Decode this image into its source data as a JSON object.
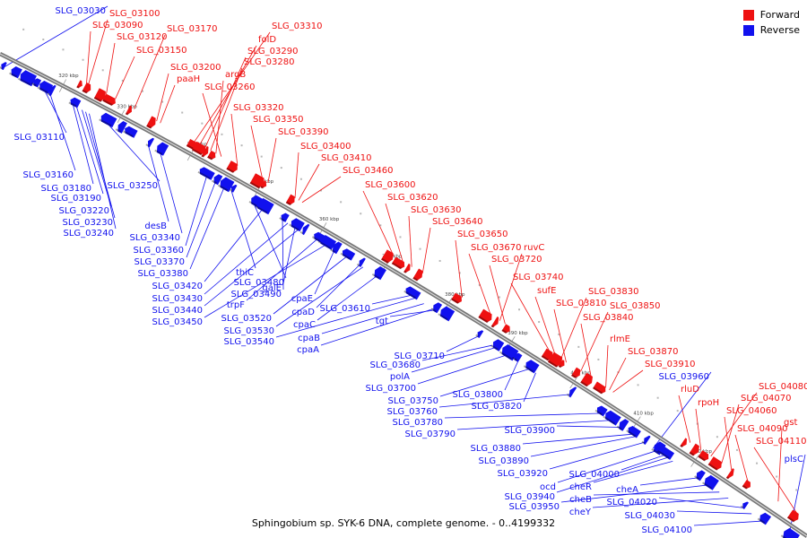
{
  "legend": {
    "forward": {
      "label": "Forward",
      "color": "#ee1111"
    },
    "reverse": {
      "label": "Reverse",
      "color": "#1111ee"
    }
  },
  "caption": "Sphingobium sp. SYK-6 DNA, complete genome. - 0..4199332",
  "ticks": [
    "320 kbp",
    "330 kbp",
    "340 kbp",
    "350 kbp",
    "360 kbp",
    "370 kbp",
    "380 kbp",
    "390 kbp",
    "400 kbp",
    "410 kbp",
    "420 kbp"
  ],
  "forward_labels": [
    "SLG_03100",
    "SLG_03090",
    "SLG_03120",
    "SLG_03150",
    "SLG_03170",
    "SLG_03200",
    "paaH",
    "SLG_03310",
    "folD",
    "SLG_03290",
    "SLG_03280",
    "argB",
    "SLG_03260",
    "SLG_03320",
    "SLG_03350",
    "SLG_03390",
    "SLG_03400",
    "SLG_03410",
    "SLG_03460",
    "SLG_03600",
    "SLG_03620",
    "SLG_03630",
    "SLG_03640",
    "SLG_03650",
    "SLG_03670",
    "ruvC",
    "SLG_03720",
    "SLG_03740",
    "sufE",
    "SLG_03830",
    "SLG_03810",
    "SLG_03850",
    "SLG_03840",
    "rlmE",
    "SLG_03870",
    "SLG_03910",
    "rluD",
    "rpoH",
    "SLG_04080",
    "SLG_04070",
    "SLG_04060",
    "SLG_04090",
    "gst",
    "SLG_04110"
  ],
  "reverse_labels": [
    "SLG_03030",
    "SLG_03110",
    "SLG_03160",
    "SLG_03180",
    "SLG_03190",
    "SLG_03250",
    "SLG_03220",
    "SLG_03230",
    "SLG_03240",
    "desB",
    "SLG_03340",
    "SLG_03360",
    "SLG_03370",
    "SLG_03380",
    "thiC",
    "SLG_03480",
    "SLG_03420",
    "SLG_03490",
    "SLG_03430",
    "galE",
    "SLG_03440",
    "trpF",
    "SLG_03450",
    "cpaE",
    "SLG_03520",
    "cpaD",
    "SLG_03530",
    "cpaC",
    "SLG_03610",
    "SLG_03540",
    "cpaB",
    "cpaA",
    "tgt",
    "SLG_03710",
    "SLG_03680",
    "polA",
    "SLG_03700",
    "SLG_03800",
    "SLG_03750",
    "SLG_03820",
    "SLG_03760",
    "SLG_03780",
    "SLG_03790",
    "SLG_03900",
    "SLG_03960",
    "SLG_03880",
    "SLG_03890",
    "SLG_03920",
    "ocd",
    "SLG_04000",
    "SLG_03940",
    "cheR",
    "cheA",
    "SLG_03950",
    "cheB",
    "cheY",
    "SLG_04020",
    "SLG_04030",
    "SLG_04100",
    "plsC"
  ]
}
